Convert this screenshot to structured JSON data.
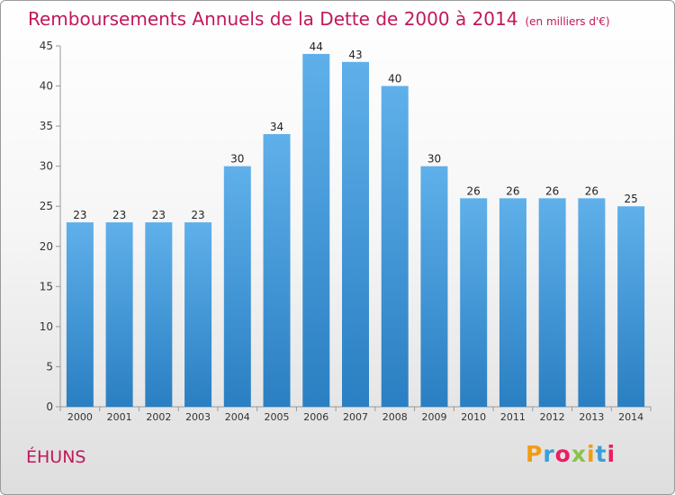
{
  "header": {
    "title": "Remboursements Annuels de la Dette de 2000 à 2014",
    "subtitle": "(en milliers d'€)"
  },
  "footer": {
    "place": "ÉHUNS",
    "brand": "Proxiti",
    "brand_colors": [
      "#f39c12",
      "#3a9fd6",
      "#e91e63",
      "#8bc34a",
      "#f39c12",
      "#3a9fd6",
      "#e91e63"
    ]
  },
  "chart_data": {
    "type": "bar",
    "categories": [
      "2000",
      "2001",
      "2002",
      "2003",
      "2004",
      "2005",
      "2006",
      "2007",
      "2008",
      "2009",
      "2010",
      "2011",
      "2012",
      "2013",
      "2014"
    ],
    "values": [
      23,
      23,
      23,
      23,
      30,
      34,
      44,
      43,
      40,
      30,
      26,
      26,
      26,
      26,
      25
    ],
    "ylim": [
      0,
      45
    ],
    "yticks": [
      0,
      5,
      10,
      15,
      20,
      25,
      30,
      35,
      40,
      45
    ],
    "grid": false,
    "colors": {
      "bar_top": "#5fb0ea",
      "bar_bottom": "#2a7fc2",
      "label": "#222222",
      "axis": "#999999"
    }
  }
}
